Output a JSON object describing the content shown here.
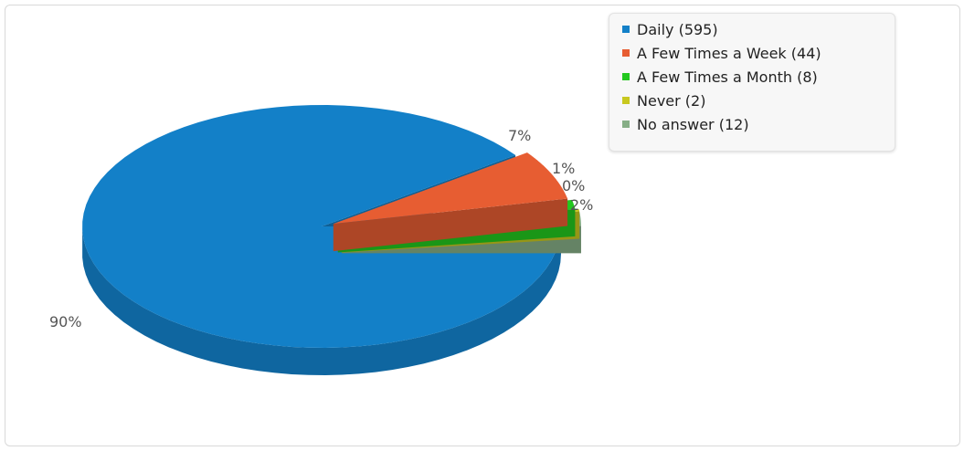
{
  "chart_data": {
    "type": "pie",
    "title": "",
    "slices": [
      {
        "label": "Daily",
        "count": 595,
        "value_label": "Daily (595)",
        "percent": "90%",
        "color": "#1380c8"
      },
      {
        "label": "A Few Times a Week",
        "count": 44,
        "value_label": "A Few Times a Week (44)",
        "percent": "7%",
        "color": "#e75d32"
      },
      {
        "label": "A Few Times a Month",
        "count": 8,
        "value_label": "A Few Times a Month (8)",
        "percent": "1%",
        "color": "#23c81f"
      },
      {
        "label": "Never",
        "count": 2,
        "value_label": "Never (2)",
        "percent": "0%",
        "color": "#c8c81f"
      },
      {
        "label": "No answer",
        "count": 12,
        "value_label": "No answer (12)",
        "percent": "2%",
        "color": "#86ae86"
      }
    ],
    "legend_position": "top-right",
    "style": "3d-exploded"
  }
}
